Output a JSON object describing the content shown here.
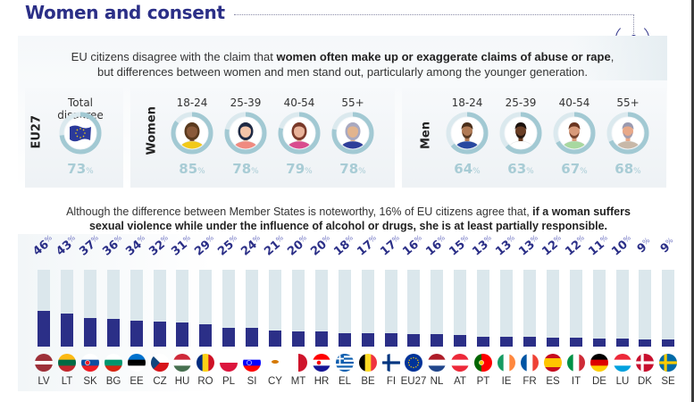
{
  "header": {
    "title": "Women and consent"
  },
  "intro": {
    "text_start": "EU citizens disagree with the claim that ",
    "text_bold": "women often make up or exaggerate claims of abuse or rape",
    "text_end": ",",
    "line2": "but differences between women and men stand out, particularly among the younger generation."
  },
  "disagree": {
    "eu27": {
      "group_label": "EU27",
      "heading": "Total disagree",
      "value": 73,
      "pct_label": "73",
      "icon": "eu-flag-icon"
    },
    "women": {
      "group_label": "Women",
      "items": [
        {
          "age": "18-24",
          "value": 85,
          "pct_label": "85",
          "icon": "woman-avatar-icon",
          "shirt": "#f2c919",
          "hair": "#5a3a1e",
          "skin": "#8a5a3a"
        },
        {
          "age": "25-39",
          "value": 78,
          "pct_label": "78",
          "icon": "woman-avatar-icon",
          "shirt": "#f08a80",
          "hair": "#1f2a44",
          "skin": "#f3c4a8"
        },
        {
          "age": "40-54",
          "value": 79,
          "pct_label": "79",
          "icon": "woman-avatar-icon",
          "shirt": "#d94c8e",
          "hair": "#7a3a2a",
          "skin": "#e9b39a"
        },
        {
          "age": "55+",
          "value": 78,
          "pct_label": "78",
          "icon": "woman-avatar-icon",
          "shirt": "#2f3f9a",
          "hair": "#a9a9c0",
          "skin": "#e2b48e"
        }
      ]
    },
    "men": {
      "group_label": "Men",
      "items": [
        {
          "age": "18-24",
          "value": 64,
          "pct_label": "64",
          "icon": "man-avatar-icon",
          "shirt": "#2848a0",
          "hair": "#4a2e1a",
          "skin": "#b07a55"
        },
        {
          "age": "25-39",
          "value": 63,
          "pct_label": "63",
          "icon": "man-avatar-icon",
          "shirt": "#ffffff",
          "hair": "#1c120c",
          "skin": "#6a3f26"
        },
        {
          "age": "40-54",
          "value": 67,
          "pct_label": "67",
          "icon": "man-avatar-icon",
          "shirt": "#a8d8a0",
          "hair": "#6a3520",
          "skin": "#d89a7a"
        },
        {
          "age": "55+",
          "value": 68,
          "pct_label": "68",
          "icon": "man-avatar-icon",
          "shirt": "#c8b8a8",
          "hair": "#9a9ab0",
          "skin": "#e8a888"
        }
      ]
    },
    "pct_suffix": "%",
    "colors": {
      "ring_track": "#dbe9ee",
      "ring_fill": "#a2c9d3",
      "pct_text": "#a8ccd5"
    }
  },
  "sub": {
    "text_start": "Although the difference between Member States is noteworthy, 16% of EU citizens agree that, ",
    "text_bold1": "if a woman suffers",
    "text_bold2": "sexual violence while under the influence of alcohol or drugs, she is at least partially responsible."
  },
  "chart_data": {
    "type": "bar",
    "title": "",
    "xlabel": "",
    "ylabel": "",
    "ylim": [
      0,
      100
    ],
    "value_suffix": "%",
    "categories": [
      "LV",
      "LT",
      "SK",
      "BG",
      "EE",
      "CZ",
      "HU",
      "RO",
      "PL",
      "SI",
      "CY",
      "MT",
      "HR",
      "EL",
      "BE",
      "FI",
      "EU27",
      "NL",
      "AT",
      "PT",
      "IE",
      "FR",
      "ES",
      "IT",
      "DE",
      "LU",
      "DK",
      "SE"
    ],
    "values": [
      46,
      43,
      37,
      36,
      34,
      32,
      31,
      29,
      25,
      24,
      21,
      20,
      20,
      18,
      17,
      17,
      16,
      16,
      15,
      13,
      13,
      13,
      12,
      12,
      11,
      10,
      9,
      9
    ],
    "colors": {
      "fill": "#2b2f87",
      "track": "#dbe7ec"
    }
  }
}
